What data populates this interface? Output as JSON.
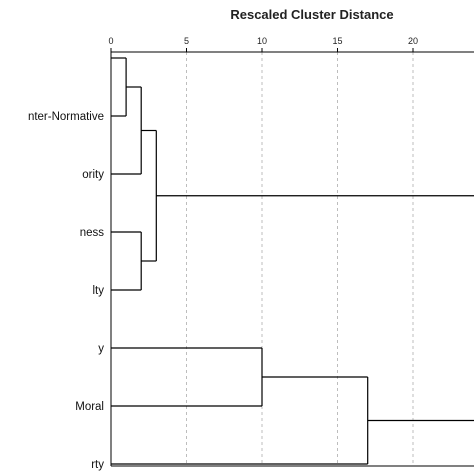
{
  "chart_data": {
    "type": "dendrogram",
    "title": "Rescaled Cluster Distance",
    "x_axis": {
      "range": [
        0,
        25
      ],
      "ticks": [
        0,
        5,
        10,
        15,
        20
      ],
      "tick_labels": [
        "0",
        "5",
        "10",
        "15",
        "20"
      ],
      "grid": true,
      "grid_style": "dashed"
    },
    "leaves": [
      "",
      "nter-Normative",
      "ority",
      "ness",
      "lty",
      "y",
      "Moral",
      "rty"
    ],
    "merges": [
      {
        "children": [
          0,
          1
        ],
        "distance": 1
      },
      {
        "children": [
          "m0",
          2
        ],
        "distance": 2
      },
      {
        "children": [
          3,
          4
        ],
        "distance": 2
      },
      {
        "children": [
          "m1",
          "m2"
        ],
        "distance": 3
      },
      {
        "children": [
          5,
          6
        ],
        "distance": 10
      },
      {
        "children": [
          "m4",
          7
        ],
        "distance": 17
      },
      {
        "children": [
          "m3",
          "m5"
        ],
        "distance": 25
      }
    ]
  }
}
